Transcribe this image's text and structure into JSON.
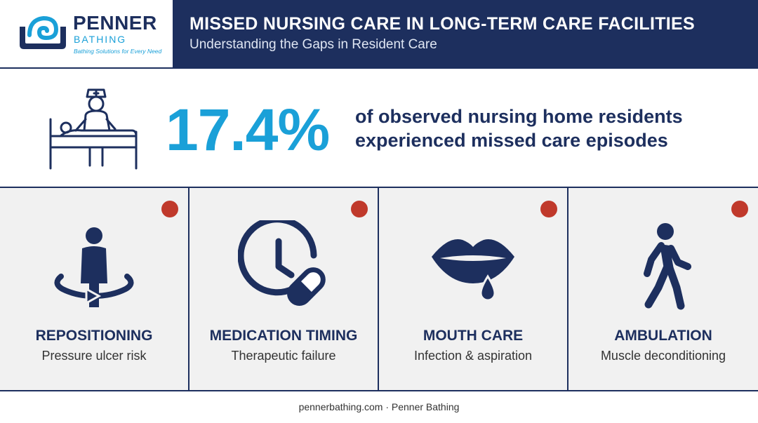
{
  "brand": {
    "name": "PENNER",
    "sub": "BATHING",
    "tagline": "Bathing Solutions for Every Need",
    "navy": "#1d2f5e",
    "accent": "#1aa0d8",
    "alert": "#c0392b"
  },
  "header": {
    "title": "MISSED NURSING CARE IN LONG-TERM CARE FACILITIES",
    "subtitle": "Understanding the Gaps in Resident Care"
  },
  "stat": {
    "value": "17.4%",
    "line1": "of observed nursing home residents",
    "line2": "experienced missed care episodes",
    "icon": "nurse-bedside-icon"
  },
  "cards": [
    {
      "label": "REPOSITIONING",
      "desc": "Pressure ulcer risk",
      "icon": "person-rotate-icon"
    },
    {
      "label": "MEDICATION TIMING",
      "desc": "Therapeutic failure",
      "icon": "clock-pill-icon"
    },
    {
      "label": "MOUTH CARE",
      "desc": "Infection & aspiration",
      "icon": "mouth-drop-icon"
    },
    {
      "label": "AMBULATION",
      "desc": "Muscle deconditioning",
      "icon": "walking-person-icon"
    }
  ],
  "footer": "pennerbathing.com · Penner Bathing"
}
